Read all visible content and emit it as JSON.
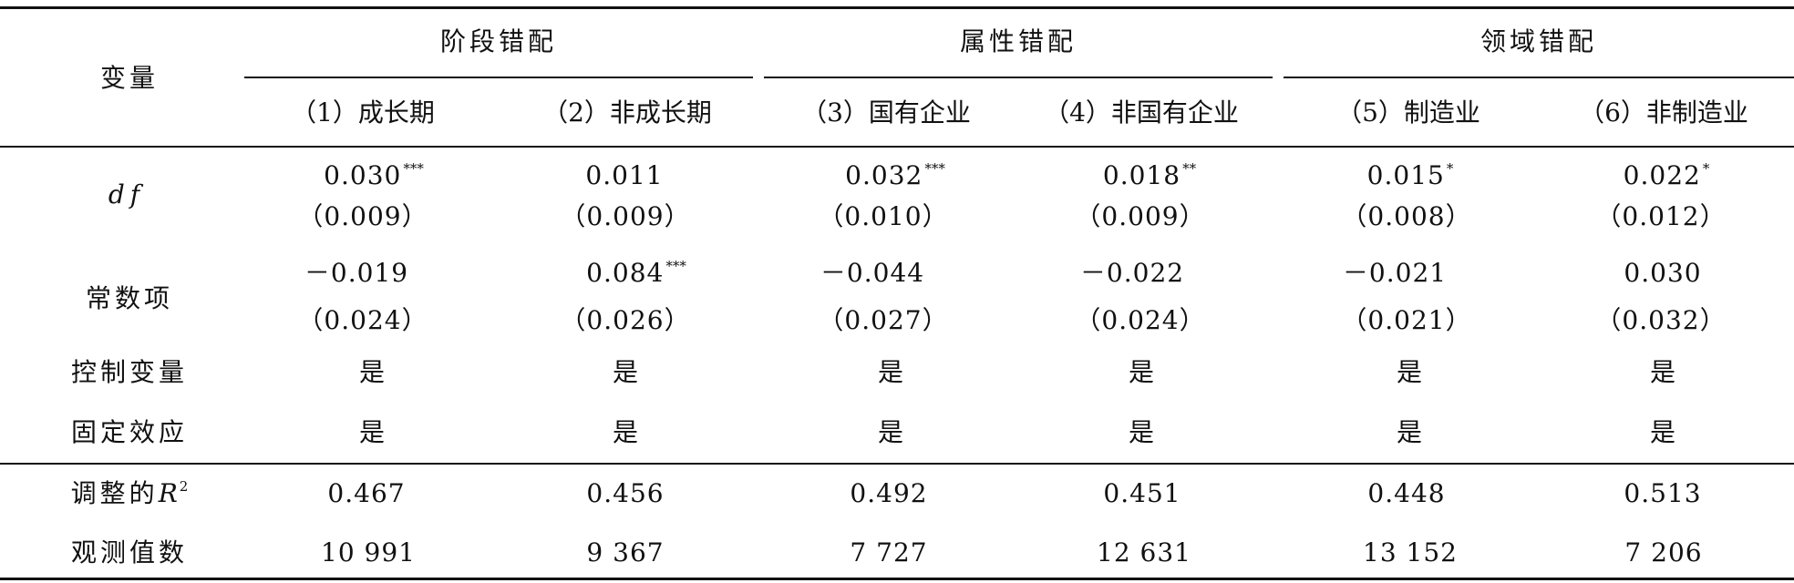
{
  "header": {
    "variable": "变量",
    "groups": [
      "阶段错配",
      "属性错配",
      "领域错配"
    ],
    "columns": [
      "（1）成长期",
      "（2）非成长期",
      "（3）国有企业",
      "（4）非国有企业",
      "（5）制造业",
      "（6）非制造业"
    ]
  },
  "rows": {
    "df": {
      "label": "df",
      "coef": [
        "0.030",
        "0.011",
        "0.032",
        "0.018",
        "0.015",
        "0.022"
      ],
      "stars": [
        "***",
        "",
        "***",
        "**",
        "*",
        "*"
      ],
      "se": [
        "（0.009）",
        "（0.009）",
        "（0.010）",
        "（0.009）",
        "（0.008）",
        "（0.012）"
      ]
    },
    "const": {
      "label": "常数项",
      "coef": [
        "－0.019",
        "0.084",
        "－0.044",
        "－0.022",
        "－0.021",
        "0.030"
      ],
      "stars": [
        "",
        "***",
        "",
        "",
        "",
        ""
      ],
      "se": [
        "（0.024）",
        "（0.026）",
        "（0.027）",
        "（0.024）",
        "（0.021）",
        "（0.032）"
      ]
    },
    "controls": {
      "label": "控制变量",
      "values": [
        "是",
        "是",
        "是",
        "是",
        "是",
        "是"
      ]
    },
    "fixed": {
      "label": "固定效应",
      "values": [
        "是",
        "是",
        "是",
        "是",
        "是",
        "是"
      ]
    },
    "r2": {
      "label": "调整的",
      "label_symbol": "R",
      "label_sup": "2",
      "values": [
        "0.467",
        "0.456",
        "0.492",
        "0.451",
        "0.448",
        "0.513"
      ]
    },
    "n": {
      "label": "观测值数",
      "values": [
        "10 991",
        "9 367",
        "7 727",
        "12 631",
        "13 152",
        "7 206"
      ]
    }
  }
}
